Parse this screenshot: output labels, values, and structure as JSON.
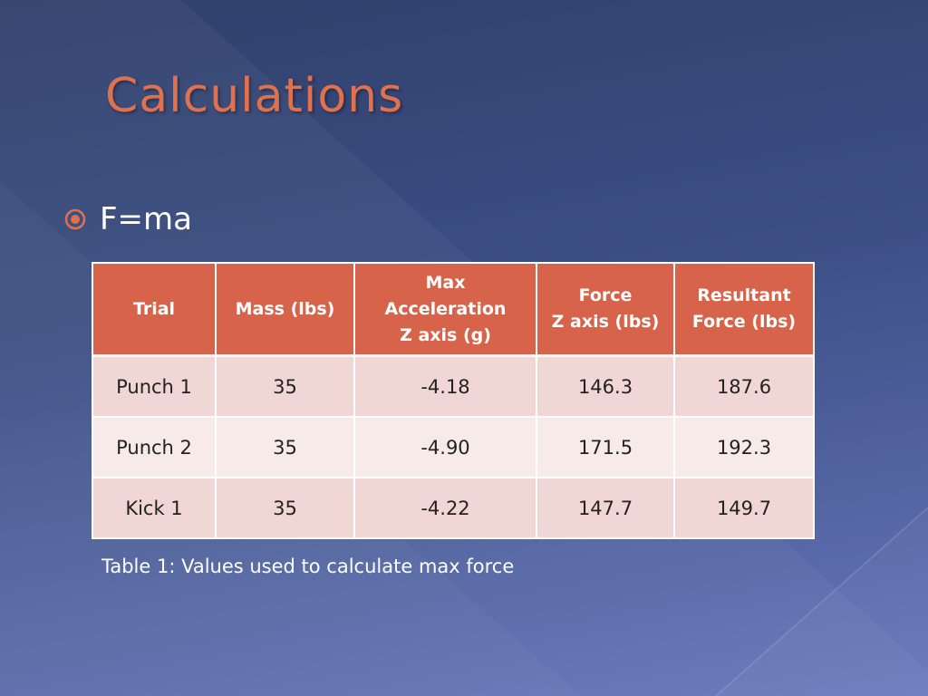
{
  "slide": {
    "title": "Calculations",
    "bullet": "F=ma"
  },
  "table": {
    "headers": [
      [
        "Trial"
      ],
      [
        "Mass (lbs)"
      ],
      [
        "Max",
        "Acceleration",
        "Z axis (g)"
      ],
      [
        "Force",
        "Z axis (lbs)"
      ],
      [
        "Resultant",
        "Force (lbs)"
      ]
    ],
    "rows": [
      [
        "Punch 1",
        "35",
        "-4.18",
        "146.3",
        "187.6"
      ],
      [
        "Punch 2",
        "35",
        "-4.90",
        "171.5",
        "192.3"
      ],
      [
        "Kick 1",
        "35",
        "-4.22",
        "147.7",
        "149.7"
      ]
    ]
  },
  "caption": "Table 1: Values used to calculate max force",
  "colors": {
    "title": "#e0714e",
    "header_fill": "#d6634a",
    "row_odd": "#f0d6d4",
    "row_even": "#f8eae9"
  },
  "icons": {
    "bullet": "circle-dot-bullet-icon"
  }
}
